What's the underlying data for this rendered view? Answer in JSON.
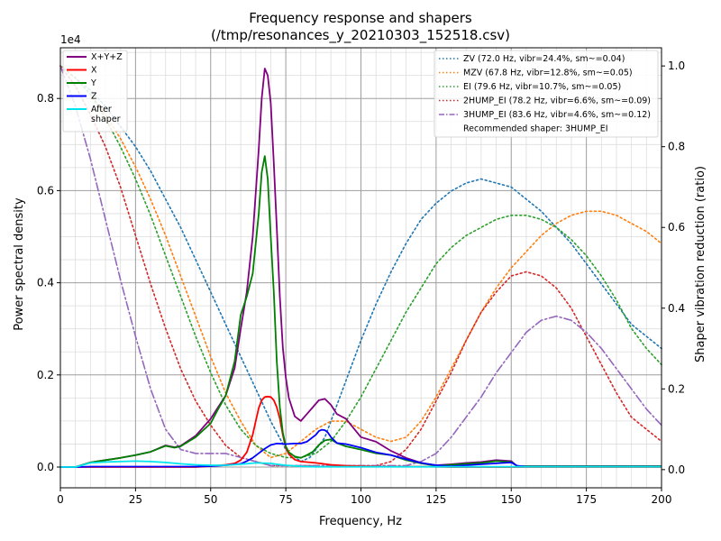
{
  "chart_data": {
    "type": "line",
    "title_line1": "Frequency response and shapers",
    "title_line2": "(/tmp/resonances_y_20210303_152518.csv)",
    "xlabel": "Frequency, Hz",
    "ylabel_left": "Power spectral density",
    "ylabel_right": "Shaper vibration reduction (ratio)",
    "y_multiplier_label": "1e4",
    "xlim": [
      0,
      200
    ],
    "ylim_left": [
      -450,
      9100
    ],
    "ylim_right": [
      -0.045,
      1.045
    ],
    "x_ticks": [
      0,
      25,
      50,
      75,
      100,
      125,
      150,
      175,
      200
    ],
    "y_left_ticks": [
      0,
      2000,
      4000,
      6000,
      8000
    ],
    "y_left_tick_labels": [
      "0.0",
      "0.2",
      "0.4",
      "0.6",
      "0.8"
    ],
    "y_right_ticks": [
      0,
      0.2,
      0.4,
      0.6,
      0.8,
      1.0
    ],
    "y_right_tick_labels": [
      "0.0",
      "0.2",
      "0.4",
      "0.6",
      "0.8",
      "1.0"
    ],
    "grid": true,
    "legend_left_position": "upper-left",
    "legend_right_position": "upper-right",
    "recommendation_text": "Recommended shaper: 3HUMP_EI",
    "psd_series": [
      {
        "name": "X+Y+Z",
        "color": "#800080",
        "x": [
          0,
          5,
          10,
          15,
          20,
          25,
          30,
          35,
          38,
          40,
          45,
          50,
          52,
          55,
          58,
          60,
          62,
          64,
          66,
          67,
          68,
          69,
          70,
          71,
          72,
          73,
          74,
          75,
          76,
          78,
          80,
          82,
          84,
          86,
          88,
          90,
          92,
          95,
          100,
          105,
          110,
          115,
          120,
          125,
          130,
          135,
          140,
          145,
          150,
          152,
          155,
          160,
          170,
          180,
          190,
          200
        ],
        "y": [
          0,
          0,
          100,
          150,
          200,
          260,
          330,
          470,
          430,
          460,
          680,
          1050,
          1250,
          1550,
          2150,
          3000,
          3800,
          5000,
          6900,
          8000,
          8650,
          8500,
          7900,
          6600,
          5200,
          3700,
          2600,
          1950,
          1500,
          1100,
          1000,
          1150,
          1300,
          1450,
          1480,
          1350,
          1150,
          1050,
          650,
          550,
          350,
          200,
          90,
          40,
          60,
          90,
          110,
          150,
          130,
          20,
          20,
          20,
          20,
          20,
          20,
          20
        ]
      },
      {
        "name": "X",
        "color": "#ff0000",
        "x": [
          0,
          10,
          20,
          30,
          40,
          45,
          50,
          55,
          58,
          60,
          62,
          64,
          65,
          66,
          67,
          68,
          69,
          70,
          71,
          72,
          73,
          74,
          75,
          76,
          77,
          78,
          80,
          85,
          90,
          95,
          100,
          110,
          120,
          130,
          140,
          150,
          160,
          170,
          180,
          190,
          200
        ],
        "y": [
          0,
          0,
          0,
          0,
          0,
          0,
          20,
          50,
          80,
          150,
          320,
          700,
          1000,
          1280,
          1450,
          1520,
          1530,
          1520,
          1450,
          1300,
          1050,
          700,
          420,
          280,
          220,
          160,
          120,
          90,
          50,
          30,
          20,
          10,
          10,
          0,
          0,
          0,
          0,
          0,
          0,
          0,
          0
        ]
      },
      {
        "name": "Y",
        "color": "#008000",
        "x": [
          0,
          5,
          10,
          15,
          20,
          25,
          30,
          35,
          38,
          40,
          45,
          50,
          52,
          55,
          58,
          60,
          62,
          64,
          66,
          67,
          68,
          69,
          70,
          71,
          72,
          73,
          74,
          75,
          76,
          78,
          80,
          82,
          84,
          86,
          88,
          90,
          92,
          95,
          100,
          105,
          110,
          115,
          120,
          125,
          130,
          135,
          140,
          145,
          150,
          152,
          155,
          160,
          170,
          180,
          190,
          200
        ],
        "y": [
          0,
          0,
          100,
          150,
          200,
          260,
          330,
          460,
          420,
          450,
          650,
          950,
          1200,
          1550,
          2300,
          3300,
          3700,
          4200,
          5500,
          6400,
          6750,
          6250,
          5000,
          3800,
          2300,
          1300,
          750,
          450,
          320,
          230,
          200,
          260,
          330,
          480,
          580,
          600,
          520,
          450,
          380,
          300,
          260,
          150,
          80,
          30,
          50,
          70,
          90,
          130,
          110,
          20,
          20,
          20,
          20,
          20,
          20,
          20
        ]
      },
      {
        "name": "Z",
        "color": "#0000ff",
        "x": [
          0,
          5,
          10,
          15,
          20,
          25,
          30,
          35,
          40,
          45,
          50,
          55,
          60,
          62,
          64,
          66,
          68,
          70,
          72,
          75,
          78,
          80,
          82,
          85,
          86,
          87,
          88,
          89,
          90,
          92,
          95,
          100,
          105,
          110,
          115,
          120,
          125,
          130,
          135,
          140,
          145,
          150,
          152,
          155,
          160,
          170,
          180,
          190,
          200
        ],
        "y": [
          0,
          0,
          10,
          10,
          10,
          10,
          10,
          10,
          10,
          10,
          20,
          40,
          70,
          130,
          200,
          300,
          400,
          480,
          510,
          500,
          510,
          510,
          550,
          700,
          780,
          810,
          800,
          750,
          650,
          520,
          500,
          420,
          320,
          260,
          170,
          90,
          40,
          20,
          40,
          60,
          80,
          100,
          30,
          10,
          10,
          10,
          10,
          10,
          10
        ]
      },
      {
        "name": "After\nshaper",
        "color": "#00e5ee",
        "x": [
          0,
          5,
          10,
          15,
          20,
          25,
          30,
          35,
          40,
          45,
          50,
          55,
          60,
          65,
          70,
          72,
          75,
          80,
          85,
          90,
          95,
          100,
          110,
          120,
          130,
          140,
          150,
          160,
          170,
          180,
          190,
          200
        ],
        "y": [
          0,
          0,
          90,
          110,
          120,
          130,
          120,
          100,
          70,
          50,
          40,
          40,
          60,
          90,
          80,
          60,
          40,
          15,
          5,
          5,
          5,
          5,
          5,
          5,
          5,
          5,
          5,
          5,
          5,
          5,
          5,
          5
        ]
      }
    ],
    "shaper_series": [
      {
        "name": "ZV (72.0 Hz, vibr=24.4%, sm~=0.04)",
        "color": "#1f77b4",
        "dash": "dotted",
        "x": [
          0,
          5,
          10,
          15,
          20,
          25,
          30,
          35,
          40,
          45,
          50,
          55,
          60,
          65,
          70,
          75,
          80,
          83,
          85,
          88,
          90,
          95,
          100,
          105,
          110,
          115,
          120,
          125,
          130,
          135,
          140,
          145,
          150,
          155,
          160,
          165,
          170,
          175,
          180,
          185,
          190,
          195,
          200
        ],
        "y": [
          1.0,
          0.97,
          0.94,
          0.9,
          0.85,
          0.8,
          0.74,
          0.67,
          0.6,
          0.52,
          0.44,
          0.36,
          0.28,
          0.2,
          0.12,
          0.05,
          0.02,
          0.03,
          0.05,
          0.08,
          0.12,
          0.22,
          0.32,
          0.41,
          0.49,
          0.56,
          0.62,
          0.66,
          0.69,
          0.71,
          0.72,
          0.71,
          0.7,
          0.67,
          0.64,
          0.6,
          0.56,
          0.51,
          0.46,
          0.41,
          0.36,
          0.33,
          0.3
        ]
      },
      {
        "name": "MZV (67.8 Hz, vibr=12.8%, sm~=0.05)",
        "color": "#ff7f0e",
        "dash": "dotted",
        "x": [
          0,
          5,
          10,
          15,
          20,
          25,
          30,
          35,
          40,
          45,
          50,
          55,
          60,
          65,
          70,
          75,
          80,
          85,
          90,
          95,
          100,
          105,
          110,
          115,
          120,
          125,
          130,
          135,
          140,
          145,
          150,
          155,
          160,
          165,
          170,
          175,
          178,
          180,
          185,
          190,
          195,
          200
        ],
        "y": [
          1.0,
          0.97,
          0.93,
          0.88,
          0.82,
          0.75,
          0.67,
          0.58,
          0.48,
          0.38,
          0.28,
          0.19,
          0.12,
          0.06,
          0.03,
          0.04,
          0.07,
          0.1,
          0.12,
          0.12,
          0.1,
          0.08,
          0.07,
          0.08,
          0.12,
          0.18,
          0.25,
          0.32,
          0.39,
          0.45,
          0.5,
          0.54,
          0.58,
          0.61,
          0.63,
          0.64,
          0.64,
          0.64,
          0.63,
          0.61,
          0.59,
          0.56
        ]
      },
      {
        "name": "EI (79.6 Hz, vibr=10.7%, sm~=0.05)",
        "color": "#2ca02c",
        "dash": "dotted",
        "x": [
          0,
          5,
          10,
          15,
          20,
          25,
          30,
          35,
          40,
          45,
          50,
          55,
          60,
          65,
          70,
          75,
          80,
          85,
          90,
          95,
          100,
          105,
          110,
          115,
          120,
          125,
          130,
          135,
          140,
          145,
          150,
          155,
          160,
          165,
          170,
          175,
          180,
          185,
          190,
          195,
          200
        ],
        "y": [
          1.0,
          0.97,
          0.93,
          0.87,
          0.8,
          0.72,
          0.63,
          0.53,
          0.43,
          0.33,
          0.24,
          0.16,
          0.1,
          0.06,
          0.04,
          0.03,
          0.03,
          0.04,
          0.07,
          0.12,
          0.18,
          0.25,
          0.32,
          0.39,
          0.45,
          0.51,
          0.55,
          0.58,
          0.6,
          0.62,
          0.63,
          0.63,
          0.62,
          0.6,
          0.57,
          0.53,
          0.48,
          0.42,
          0.35,
          0.3,
          0.26
        ]
      },
      {
        "name": "2HUMP_EI (78.2 Hz, vibr=6.6%, sm~=0.09)",
        "color": "#d62728",
        "dash": "dotted",
        "x": [
          0,
          5,
          10,
          15,
          20,
          25,
          30,
          35,
          40,
          45,
          50,
          55,
          60,
          65,
          70,
          75,
          80,
          85,
          90,
          95,
          100,
          105,
          110,
          115,
          120,
          125,
          130,
          135,
          140,
          145,
          150,
          155,
          160,
          165,
          170,
          175,
          180,
          185,
          190,
          195,
          200
        ],
        "y": [
          1.0,
          0.95,
          0.88,
          0.8,
          0.7,
          0.58,
          0.46,
          0.35,
          0.25,
          0.17,
          0.11,
          0.06,
          0.03,
          0.02,
          0.01,
          0.01,
          0.01,
          0.01,
          0.01,
          0.01,
          0.01,
          0.01,
          0.02,
          0.05,
          0.1,
          0.17,
          0.24,
          0.32,
          0.39,
          0.44,
          0.48,
          0.49,
          0.48,
          0.45,
          0.4,
          0.33,
          0.26,
          0.19,
          0.13,
          0.1,
          0.07
        ]
      },
      {
        "name": "3HUMP_EI (83.6 Hz, vibr=4.6%, sm~=0.12)",
        "color": "#9467bd",
        "dash": "dashdot",
        "x": [
          0,
          5,
          10,
          15,
          20,
          25,
          30,
          35,
          40,
          45,
          50,
          55,
          60,
          65,
          70,
          75,
          80,
          85,
          90,
          95,
          100,
          105,
          110,
          115,
          120,
          125,
          130,
          135,
          140,
          145,
          150,
          155,
          160,
          165,
          170,
          175,
          180,
          185,
          190,
          195,
          200
        ],
        "y": [
          1.0,
          0.9,
          0.77,
          0.62,
          0.47,
          0.33,
          0.2,
          0.1,
          0.05,
          0.04,
          0.04,
          0.04,
          0.03,
          0.02,
          0.01,
          0.01,
          0.01,
          0.01,
          0.01,
          0.01,
          0.01,
          0.01,
          0.01,
          0.01,
          0.02,
          0.04,
          0.08,
          0.13,
          0.18,
          0.24,
          0.29,
          0.34,
          0.37,
          0.38,
          0.37,
          0.34,
          0.3,
          0.25,
          0.2,
          0.15,
          0.11
        ]
      }
    ]
  }
}
